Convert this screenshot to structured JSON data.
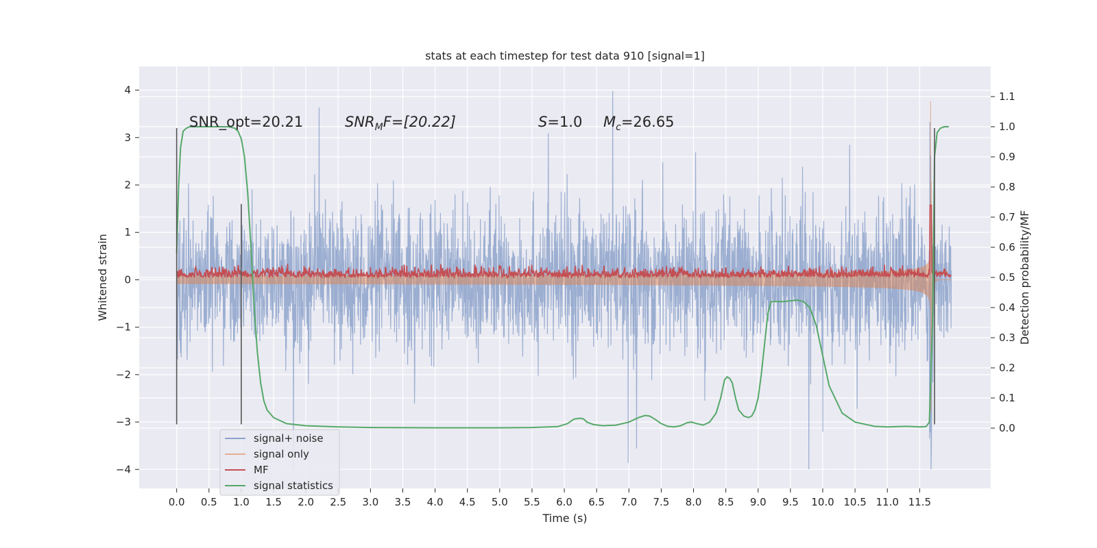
{
  "chart_data": {
    "type": "line",
    "title": "stats at each timestep for test data 910 [signal=1]",
    "xlabel": "Time (s)",
    "ylabel": "Whitened strain",
    "ylabel_right": "Detection probability/MF",
    "xlim": [
      -0.58,
      12.6
    ],
    "ylim": [
      -4.4,
      4.5
    ],
    "ylim_right": [
      -0.2,
      1.2
    ],
    "x_ticks": [
      0.0,
      0.5,
      1.0,
      1.5,
      2.0,
      2.5,
      3.0,
      3.5,
      4.0,
      4.5,
      5.0,
      5.5,
      6.0,
      6.5,
      7.0,
      7.5,
      8.0,
      8.5,
      9.0,
      9.5,
      10.0,
      10.5,
      11.0,
      11.5
    ],
    "x_tick_labels": [
      "0.0",
      "0.5",
      "1.0",
      "1.5",
      "2.0",
      "2.5",
      "3.0",
      "3.5",
      "4.0",
      "4.5",
      "5.0",
      "5.5",
      "6.0",
      "6.5",
      "7.0",
      "7.5",
      "8.0",
      "8.5",
      "9.0",
      "9.5",
      "10.0",
      "10.5",
      "11.0",
      "11.5"
    ],
    "y_ticks": [
      -4,
      -3,
      -2,
      -1,
      0,
      1,
      2,
      3,
      4
    ],
    "y_tick_labels": [
      "−4",
      "−3",
      "−2",
      "−1",
      "0",
      "1",
      "2",
      "3",
      "4"
    ],
    "y_right_ticks": [
      0.0,
      0.1,
      0.2,
      0.3,
      0.4,
      0.5,
      0.6,
      0.7,
      0.8,
      0.9,
      1.0,
      1.1
    ],
    "y_right_tick_labels": [
      "0.0",
      "0.1",
      "0.2",
      "0.3",
      "0.4",
      "0.5",
      "0.6",
      "0.7",
      "0.8",
      "0.9",
      "1.0",
      "1.1"
    ],
    "grid": true,
    "legend_position": "bottom-left",
    "annotations": {
      "snr_opt": "SNR_opt=20.21",
      "snr_mf_sym": "SNR",
      "snr_mf_sub": "M",
      "snr_mf_rest": "F=[20.22]",
      "s_sym": "S",
      "s_rest": "=1.0",
      "mc_sym": "M",
      "mc_sub": "c",
      "mc_rest": "=26.65"
    },
    "series": [
      {
        "name": "signal+ noise",
        "color": "#4c72b0",
        "opacity": 0.5,
        "axis": "left",
        "x_range": [
          0.0,
          11.99
        ],
        "envelope_typical": [
          -1.3,
          1.3
        ],
        "extreme_min": -4.0,
        "extreme_max": 4.1
      },
      {
        "name": "signal only",
        "color": "#dd8452",
        "opacity": 0.5,
        "axis": "left",
        "chirp_peak_x": 11.67,
        "chirp_peak_amplitude": 3.8
      },
      {
        "name": "MF",
        "color": "#c44e52",
        "axis": "right",
        "baseline": 0.5,
        "noise": 0.015,
        "peak_x": 11.67,
        "peak_value": 0.74
      },
      {
        "name": "signal statistics",
        "color": "#55a868",
        "axis": "right",
        "x": [
          0.0,
          0.03,
          0.06,
          0.1,
          0.15,
          0.2,
          0.3,
          0.5,
          0.7,
          0.8,
          0.9,
          0.95,
          1.0,
          1.05,
          1.1,
          1.15,
          1.2,
          1.25,
          1.3,
          1.35,
          1.4,
          1.5,
          1.7,
          2.0,
          2.5,
          3.0,
          4.0,
          5.0,
          5.5,
          5.9,
          6.05,
          6.15,
          6.25,
          6.3,
          6.35,
          6.45,
          6.6,
          6.8,
          7.0,
          7.15,
          7.25,
          7.32,
          7.4,
          7.5,
          7.6,
          7.7,
          7.8,
          7.9,
          7.97,
          8.05,
          8.15,
          8.25,
          8.35,
          8.42,
          8.48,
          8.52,
          8.56,
          8.6,
          8.65,
          8.7,
          8.78,
          8.85,
          8.9,
          8.95,
          9.0,
          9.05,
          9.1,
          9.15,
          9.2,
          9.25,
          9.3,
          9.4,
          9.6,
          9.7,
          9.8,
          9.9,
          10.0,
          10.1,
          10.3,
          10.5,
          10.8,
          11.0,
          11.3,
          11.5,
          11.6,
          11.65,
          11.7,
          11.73,
          11.77,
          11.82,
          11.88,
          11.95
        ],
        "values": [
          0.58,
          0.8,
          0.93,
          0.985,
          0.995,
          1.0,
          1.0,
          1.0,
          1.0,
          1.0,
          0.995,
          0.985,
          0.96,
          0.9,
          0.78,
          0.6,
          0.4,
          0.25,
          0.15,
          0.09,
          0.06,
          0.035,
          0.015,
          0.008,
          0.004,
          0.002,
          0.001,
          0.001,
          0.002,
          0.005,
          0.015,
          0.03,
          0.033,
          0.03,
          0.02,
          0.012,
          0.008,
          0.01,
          0.02,
          0.035,
          0.042,
          0.04,
          0.03,
          0.015,
          0.006,
          0.004,
          0.008,
          0.018,
          0.02,
          0.015,
          0.01,
          0.02,
          0.05,
          0.1,
          0.16,
          0.17,
          0.165,
          0.15,
          0.1,
          0.06,
          0.04,
          0.035,
          0.04,
          0.06,
          0.1,
          0.18,
          0.28,
          0.38,
          0.42,
          0.42,
          0.42,
          0.42,
          0.425,
          0.42,
          0.4,
          0.34,
          0.24,
          0.14,
          0.05,
          0.02,
          0.006,
          0.004,
          0.006,
          0.004,
          0.005,
          0.02,
          0.35,
          0.9,
          0.98,
          0.995,
          1.0,
          1.0
        ]
      }
    ],
    "vertical_markers": [
      {
        "x": 0.0,
        "y_from": -3.05,
        "y_to": 3.2,
        "color": "#555555"
      },
      {
        "x": 1.0,
        "y_from": -3.05,
        "y_to": 1.6,
        "color": "#555555"
      },
      {
        "x": 11.73,
        "y_from": -3.05,
        "y_to": 3.2,
        "color": "#555555"
      }
    ]
  }
}
